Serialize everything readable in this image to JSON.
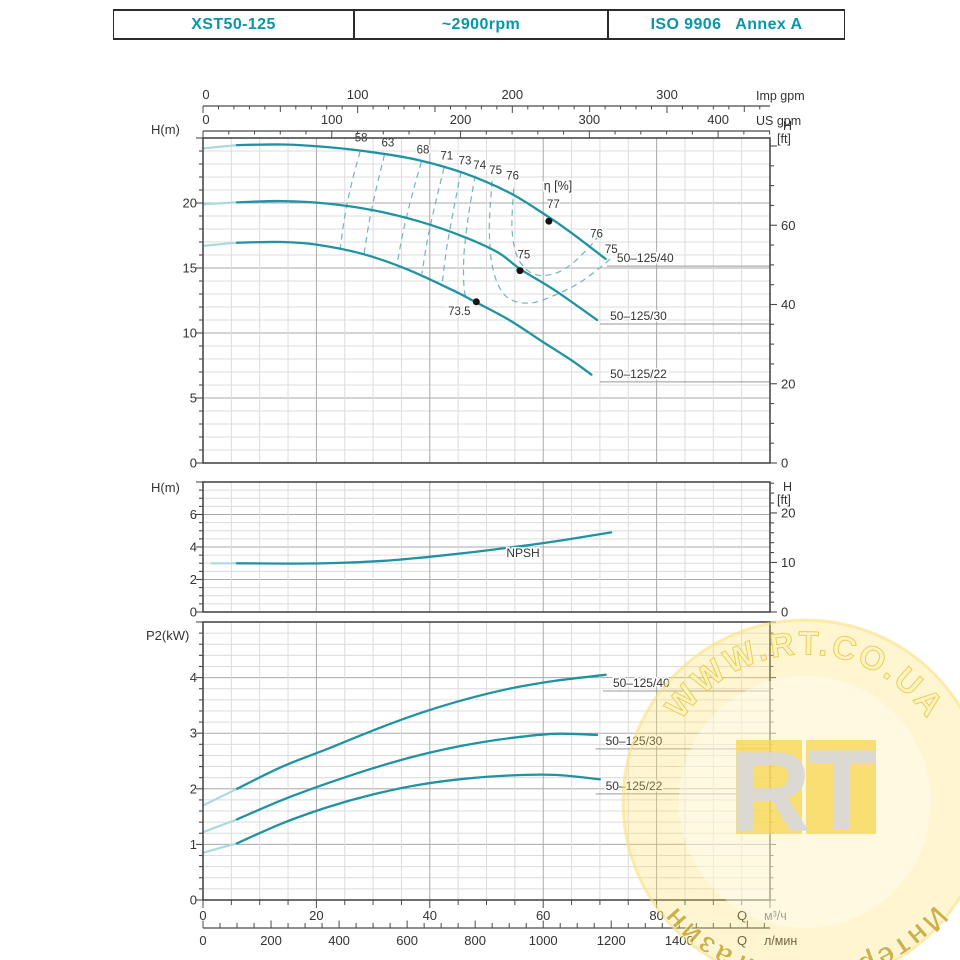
{
  "header": {
    "model": "XST50-125",
    "speed": "~2900rpm",
    "standard": "ISO 9906   Annex A"
  },
  "colors": {
    "accent": "#0a95a8",
    "curve": "#1f93a3",
    "curve_light": "#aadade",
    "contour": "#74b3c0",
    "grid_minor": "#dcdcdc",
    "grid_major": "#a9a9a9",
    "frame": "#4a4a4a",
    "text": "#333333",
    "leader": "#999999",
    "watermark_disc": "#ffe066",
    "watermark_tile": "#f6d44d",
    "watermark_top_text": "#fbf3c4",
    "watermark_top_stroke": "#e9c93f",
    "watermark_bottom_text": "#c7a62e",
    "watermark_gray": "#d9d9d9"
  },
  "units": {
    "imp": "Imp gpm",
    "us": "US gpm",
    "q": "Q",
    "m3h": "м³/ч",
    "lmin": "л/мин",
    "h_m": "H(m)",
    "h_ft_top": "H",
    "h_ft_bottom": "[ft]",
    "p2": "P2(kW)"
  },
  "top_axes": {
    "imp": {
      "labels": [
        0,
        100,
        200,
        300
      ],
      "minor_step": 10,
      "mid_step": 50,
      "label_step": 100,
      "m3h_per_unit": 0.27276
    },
    "us": {
      "labels": [
        0,
        100,
        200,
        300,
        400
      ],
      "minor_step": 20,
      "label_step": 100,
      "m3h_per_unit": 0.22712
    }
  },
  "bottom_axes": {
    "m3h": {
      "labels": [
        0,
        20,
        40,
        60,
        80
      ],
      "minor_step": 5,
      "label_step": 20
    },
    "lmin": {
      "labels": [
        0,
        200,
        400,
        600,
        800,
        1000,
        1200,
        1400
      ],
      "minor_step": 50,
      "label_step": 200,
      "m3h_per_unit": 0.06
    }
  },
  "chart_data": [
    {
      "type": "line",
      "name": "head-capacity",
      "x_unit": "м³/ч",
      "x_range": [
        0,
        100
      ],
      "y_axis": {
        "label": "H(m)",
        "min": 0,
        "max": 25,
        "tick_labels": [
          0,
          5,
          10,
          15,
          20
        ],
        "minor": 1,
        "major": 5
      },
      "y2_axis": {
        "unit": "ft",
        "labels": [
          0,
          20,
          40,
          60
        ],
        "minor": 5,
        "major": 20
      },
      "series": [
        {
          "name": "50–125/40",
          "lead": [
            [
              0,
              24.2
            ],
            [
              6,
              24.45
            ]
          ],
          "points": [
            [
              6,
              24.45
            ],
            [
              14,
              24.5
            ],
            [
              22,
              24.3
            ],
            [
              30,
              23.9
            ],
            [
              38,
              23.3
            ],
            [
              46,
              22.3
            ],
            [
              54,
              20.8
            ],
            [
              60,
              19.2
            ],
            [
              65,
              17.7
            ],
            [
              71,
              15.7
            ]
          ],
          "label": {
            "text": "50–125/40",
            "q": 73,
            "v": 15.45,
            "leader": true
          }
        },
        {
          "name": "50–125/30",
          "lead": [
            [
              0,
              19.9
            ],
            [
              6,
              20.05
            ]
          ],
          "points": [
            [
              6,
              20.05
            ],
            [
              14,
              20.15
            ],
            [
              22,
              19.95
            ],
            [
              30,
              19.45
            ],
            [
              38,
              18.6
            ],
            [
              46,
              17.4
            ],
            [
              52,
              16.2
            ],
            [
              56,
              14.9
            ],
            [
              62,
              13.3
            ],
            [
              69.5,
              11.0
            ]
          ],
          "label": {
            "text": "50–125/30",
            "q": 71.8,
            "v": 11.0,
            "leader": true
          }
        },
        {
          "name": "50–125/22",
          "lead": [
            [
              0,
              16.7
            ],
            [
              6,
              16.95
            ]
          ],
          "points": [
            [
              6,
              16.95
            ],
            [
              14,
              17.0
            ],
            [
              20,
              16.8
            ],
            [
              28,
              16.1
            ],
            [
              36,
              14.9
            ],
            [
              44,
              13.3
            ],
            [
              48,
              12.4
            ],
            [
              54,
              11.0
            ],
            [
              60,
              9.3
            ],
            [
              65,
              7.9
            ],
            [
              68.5,
              6.8
            ]
          ],
          "label": {
            "text": "50–125/22",
            "q": 71.8,
            "v": 6.55,
            "leader": true
          }
        }
      ],
      "duty_points": [
        {
          "q": 61.0,
          "v": 18.6,
          "text": "77",
          "tq": 61.8,
          "tv": 19.6
        },
        {
          "q": 55.9,
          "v": 14.8,
          "text": "75",
          "tq": 56.6,
          "tv": 15.75
        },
        {
          "q": 48.2,
          "v": 12.4,
          "text": "73.5",
          "tq": 45.2,
          "tv": 11.4
        }
      ],
      "efficiency_contours": [
        {
          "text": "58",
          "tq": 27.9,
          "tv": 24.75,
          "points": [
            [
              27.7,
              23.95
            ],
            [
              26.2,
              21.5
            ],
            [
              25.0,
              19.0
            ],
            [
              24.2,
              16.5
            ]
          ]
        },
        {
          "text": "63",
          "tq": 32.6,
          "tv": 24.35,
          "points": [
            [
              32.0,
              23.7
            ],
            [
              30.5,
              21.0
            ],
            [
              29.3,
              18.5
            ],
            [
              28.4,
              16.05
            ]
          ]
        },
        {
          "text": "68",
          "tq": 38.8,
          "tv": 23.8,
          "points": [
            [
              38.5,
              23.15
            ],
            [
              36.8,
              20.5
            ],
            [
              35.3,
              17.8
            ],
            [
              34.2,
              15.25
            ]
          ]
        },
        {
          "text": "71",
          "tq": 43.0,
          "tv": 23.35,
          "points": [
            [
              42.5,
              22.7
            ],
            [
              41.0,
              20.0
            ],
            [
              39.6,
              17.2
            ],
            [
              38.6,
              14.55
            ]
          ]
        },
        {
          "text": "73",
          "tq": 46.2,
          "tv": 22.95,
          "points": [
            [
              45.5,
              22.4
            ],
            [
              44.2,
              19.5
            ],
            [
              43.0,
              16.6
            ],
            [
              42.2,
              13.9
            ]
          ]
        },
        {
          "text": "74",
          "tq": 48.8,
          "tv": 22.6,
          "points": [
            [
              48.0,
              22.1
            ],
            [
              46.8,
              19.0
            ],
            [
              46.0,
              15.8
            ],
            [
              46.2,
              13.0
            ],
            [
              47.8,
              12.45
            ]
          ]
        },
        {
          "text": "75",
          "tq": 51.6,
          "tv": 22.25,
          "points": [
            [
              51.0,
              21.7
            ],
            [
              50.5,
              18.0
            ],
            [
              51.2,
              14.8
            ],
            [
              53.5,
              12.8
            ],
            [
              57.5,
              12.3
            ],
            [
              62.0,
              12.9
            ],
            [
              66.5,
              13.9
            ],
            [
              70.5,
              15.2
            ],
            [
              72.3,
              15.9
            ]
          ]
        },
        {
          "text": "76",
          "tq": 54.6,
          "tv": 21.8,
          "points": [
            [
              54.8,
              21.1
            ],
            [
              54.5,
              18.0
            ],
            [
              55.5,
              15.8
            ],
            [
              58.0,
              14.6
            ],
            [
              61.5,
              14.5
            ],
            [
              65.0,
              15.3
            ],
            [
              68.3,
              16.7
            ],
            [
              69.8,
              17.5
            ]
          ]
        }
      ],
      "annotations": [
        {
          "text": "η [%]",
          "q": 62.6,
          "v": 21.0,
          "size": 12.5
        },
        {
          "text": "76",
          "q": 69.4,
          "v": 17.35,
          "size": 11.5
        },
        {
          "text": "75",
          "q": 72.0,
          "v": 16.15,
          "size": 11.5
        }
      ]
    },
    {
      "type": "line",
      "name": "npsh",
      "x_unit": "м³/ч",
      "x_range": [
        0,
        100
      ],
      "y_axis": {
        "label": "H(m)",
        "min": 0,
        "max": 8,
        "tick_labels": [
          0,
          2,
          4,
          6
        ],
        "minor": 0.5,
        "major": 2
      },
      "y2_axis": {
        "unit": "ft",
        "labels": [
          0,
          10,
          20
        ],
        "minor": 2,
        "major": 10
      },
      "series": [
        {
          "name": "NPSH",
          "lead": [
            [
              1.5,
              3.0
            ],
            [
              6,
              3.0
            ]
          ],
          "points": [
            [
              6,
              3.0
            ],
            [
              16,
              2.98
            ],
            [
              24,
              3.02
            ],
            [
              32,
              3.15
            ],
            [
              40,
              3.4
            ],
            [
              48,
              3.7
            ],
            [
              56,
              4.05
            ],
            [
              64,
              4.45
            ],
            [
              72,
              4.9
            ]
          ],
          "label": {
            "text": "NPSH",
            "q": 53.5,
            "v": 3.4,
            "leader": false
          }
        }
      ],
      "duty_points": [],
      "efficiency_contours": [],
      "annotations": []
    },
    {
      "type": "line",
      "name": "power",
      "x_unit": "м³/ч",
      "x_range": [
        0,
        100
      ],
      "y_axis": {
        "label": "P2(kW)",
        "min": 0,
        "max": 5,
        "tick_labels": [
          0,
          1,
          2,
          3,
          4
        ],
        "minor": 0.2,
        "major": 1
      },
      "y2_axis": null,
      "series": [
        {
          "name": "50–125/40",
          "lead": [
            [
              0,
              1.7
            ],
            [
              6,
              2.0
            ]
          ],
          "points": [
            [
              6,
              2.0
            ],
            [
              14,
              2.4
            ],
            [
              22,
              2.72
            ],
            [
              30,
              3.05
            ],
            [
              38,
              3.35
            ],
            [
              46,
              3.6
            ],
            [
              54,
              3.8
            ],
            [
              62,
              3.94
            ],
            [
              71,
              4.05
            ]
          ],
          "label": {
            "text": "50–125/40",
            "q": 72.3,
            "v": 3.83,
            "leader": true
          }
        },
        {
          "name": "50–125/30",
          "lead": [
            [
              0,
              1.22
            ],
            [
              6,
              1.45
            ]
          ],
          "points": [
            [
              6,
              1.45
            ],
            [
              14,
              1.8
            ],
            [
              22,
              2.1
            ],
            [
              30,
              2.37
            ],
            [
              38,
              2.6
            ],
            [
              46,
              2.78
            ],
            [
              54,
              2.91
            ],
            [
              62,
              2.99
            ],
            [
              69.5,
              2.97
            ]
          ],
          "label": {
            "text": "50–125/30",
            "q": 71.0,
            "v": 2.79,
            "leader": true
          }
        },
        {
          "name": "50–125/22",
          "lead": [
            [
              0,
              0.85
            ],
            [
              6,
              1.02
            ]
          ],
          "points": [
            [
              6,
              1.02
            ],
            [
              14,
              1.38
            ],
            [
              22,
              1.67
            ],
            [
              30,
              1.9
            ],
            [
              38,
              2.07
            ],
            [
              46,
              2.18
            ],
            [
              54,
              2.24
            ],
            [
              62,
              2.25
            ],
            [
              70,
              2.17
            ]
          ],
          "label": {
            "text": "50–125/22",
            "q": 71.0,
            "v": 1.98,
            "leader": true
          }
        }
      ],
      "duty_points": [],
      "efficiency_contours": [],
      "annotations": []
    }
  ],
  "watermark": {
    "arc_top": "WWW.RT.CO.UA",
    "arc_bottom": "Интернет магазин",
    "letter_r": "R",
    "letter_t": "T"
  }
}
